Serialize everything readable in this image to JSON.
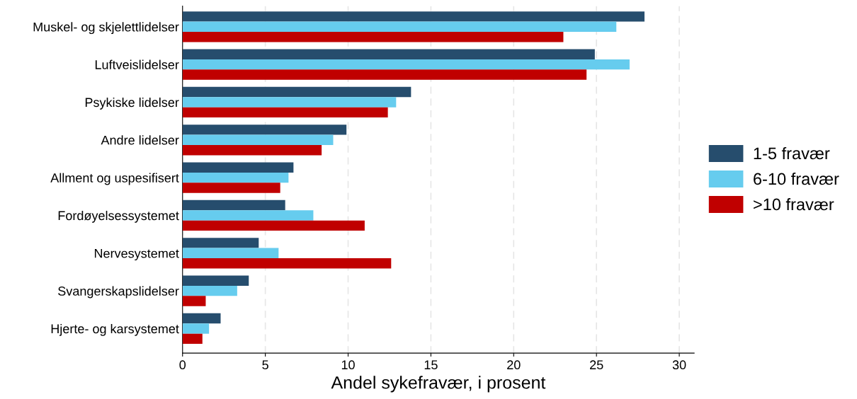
{
  "chart_data": {
    "type": "bar",
    "orientation": "horizontal",
    "xlabel": "Andel sykefravær, i prosent",
    "categories": [
      "Muskel- og skjelettlidelser",
      "Luftveislidelser",
      "Psykiske lidelser",
      "Andre lidelser",
      "Allment og uspesifisert",
      "Fordøyelsessystemet",
      "Nervesystemet",
      "Svangerskapslidelser",
      "Hjerte- og karsystemet"
    ],
    "series": [
      {
        "name": "1-5 fravær",
        "color": "#264d6d",
        "values": [
          27.9,
          24.9,
          13.8,
          9.9,
          6.7,
          6.2,
          4.6,
          4.0,
          2.3
        ]
      },
      {
        "name": "6-10 fravær",
        "color": "#66ccee",
        "values": [
          26.2,
          27.0,
          12.9,
          9.1,
          6.4,
          7.9,
          5.8,
          3.3,
          1.6
        ]
      },
      {
        "name": ">10 fravær",
        "color": "#c00000",
        "values": [
          23.0,
          24.4,
          12.4,
          8.4,
          5.9,
          11.0,
          12.6,
          1.4,
          1.2
        ]
      }
    ],
    "xlim": [
      0,
      30.9
    ],
    "xticks": [
      0,
      5,
      10,
      15,
      20,
      25,
      30
    ],
    "grid": "x",
    "legend": "right"
  }
}
